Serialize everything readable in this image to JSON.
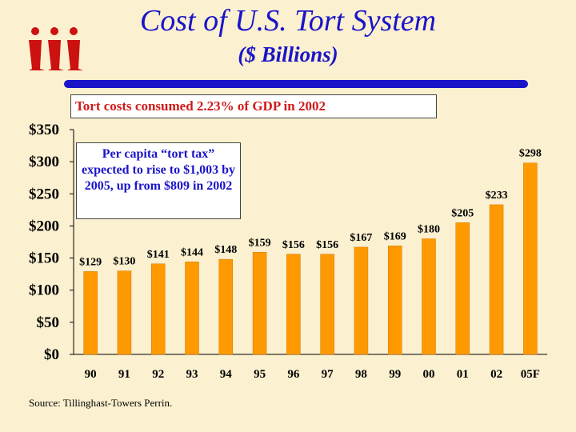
{
  "header": {
    "title": "Cost of U.S. Tort System",
    "subtitle": "($ Billions)"
  },
  "callout": "Tort costs consumed 2.23% of GDP in 2002",
  "note": "Per capita “tort tax” expected to rise to $1,003 by 2005, up from $809 in 2002",
  "source": "Source:  Tillinghast-Towers Perrin.",
  "colors": {
    "title": "#1a14c8",
    "bar": "#ff9900",
    "callout_text": "#d01a1a",
    "background": "#fbf0cf"
  },
  "chart_data": {
    "type": "bar",
    "categories": [
      "90",
      "91",
      "92",
      "93",
      "94",
      "95",
      "96",
      "97",
      "98",
      "99",
      "00",
      "01",
      "02",
      "05F"
    ],
    "values": [
      129,
      130,
      141,
      144,
      148,
      159,
      156,
      156,
      167,
      169,
      180,
      205,
      233,
      298
    ],
    "data_labels": [
      "$129",
      "$130",
      "$141",
      "$144",
      "$148",
      "$159",
      "$156",
      "$156",
      "$167",
      "$169",
      "$180",
      "$205",
      "$233",
      "$298"
    ],
    "y_ticks": [
      0,
      50,
      100,
      150,
      200,
      250,
      300,
      350
    ],
    "y_tick_labels": [
      "$0",
      "$50",
      "$100",
      "$150",
      "$200",
      "$250",
      "$300",
      "$350"
    ],
    "ylim": [
      0,
      350
    ],
    "grid": false,
    "legend": false
  }
}
